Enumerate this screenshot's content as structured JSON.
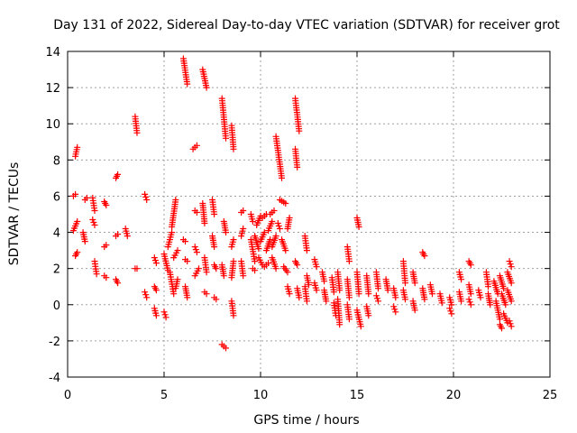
{
  "chart_data": {
    "type": "scatter",
    "title": "Day 131 of 2022, Sidereal Day-to-day VTEC variation (SDTVAR) for receiver grot",
    "xlabel": "GPS time / hours",
    "ylabel": "SDTVAR / TECUs",
    "xlim": [
      0,
      25
    ],
    "ylim": [
      -4,
      14
    ],
    "xticks": [
      0,
      5,
      10,
      15,
      20,
      25
    ],
    "yticks": [
      -4,
      -2,
      0,
      2,
      4,
      6,
      8,
      10,
      12,
      14
    ],
    "xtick_labels": [
      "0",
      "5",
      "10",
      "15",
      "20",
      "25"
    ],
    "ytick_labels": [
      "-4",
      "-2",
      "0",
      "2",
      "4",
      "6",
      "8",
      "10",
      "12",
      "14"
    ],
    "grid": true,
    "marker": "+",
    "color": "#ff0000",
    "series": [
      {
        "name": "SDTVAR",
        "segments": [
          [
            0.4,
            8.2,
            0.5,
            8.7
          ],
          [
            0.3,
            6.0,
            0.4,
            6.1
          ],
          [
            0.3,
            4.1,
            0.5,
            4.6
          ],
          [
            0.4,
            2.7,
            0.5,
            2.9
          ],
          [
            0.9,
            5.8,
            1.0,
            5.9
          ],
          [
            0.8,
            4.0,
            0.9,
            3.5
          ],
          [
            1.3,
            5.9,
            1.4,
            5.2
          ],
          [
            1.3,
            4.7,
            1.4,
            4.4
          ],
          [
            1.4,
            2.4,
            1.5,
            1.7
          ],
          [
            1.9,
            5.7,
            2.0,
            5.5
          ],
          [
            1.9,
            3.2,
            2.0,
            3.3
          ],
          [
            1.9,
            1.6,
            2.0,
            1.5
          ],
          [
            2.5,
            7.0,
            2.6,
            7.2
          ],
          [
            2.5,
            3.8,
            2.6,
            3.9
          ],
          [
            2.5,
            1.4,
            2.6,
            1.2
          ],
          [
            3.0,
            4.2,
            3.1,
            3.8
          ],
          [
            3.5,
            10.4,
            3.6,
            9.5
          ],
          [
            3.5,
            2.0,
            3.6,
            2.0
          ],
          [
            4.0,
            6.1,
            4.1,
            5.8
          ],
          [
            4.0,
            0.7,
            4.1,
            0.4
          ],
          [
            4.5,
            2.6,
            4.6,
            2.3
          ],
          [
            4.5,
            1.0,
            4.6,
            0.8
          ],
          [
            4.5,
            -0.2,
            4.6,
            -0.6
          ],
          [
            5.0,
            -0.4,
            5.1,
            -0.7
          ],
          [
            5.0,
            2.8,
            5.2,
            1.9
          ],
          [
            5.2,
            3.2,
            5.4,
            4.0
          ],
          [
            5.3,
            1.8,
            5.5,
            0.6
          ],
          [
            5.4,
            4.3,
            5.6,
            5.8
          ],
          [
            5.5,
            2.6,
            5.7,
            3.0
          ],
          [
            5.6,
            0.9,
            5.7,
            1.4
          ],
          [
            6.0,
            13.6,
            6.2,
            12.2
          ],
          [
            6.0,
            3.6,
            6.1,
            3.5
          ],
          [
            6.1,
            2.5,
            6.2,
            2.4
          ],
          [
            6.1,
            1.0,
            6.2,
            0.4
          ],
          [
            6.5,
            8.6,
            6.7,
            8.8
          ],
          [
            6.6,
            5.2,
            6.7,
            5.1
          ],
          [
            6.6,
            3.2,
            6.7,
            2.9
          ],
          [
            6.6,
            1.6,
            6.8,
            2.0
          ],
          [
            7.0,
            13.0,
            7.2,
            12.0
          ],
          [
            7.0,
            5.6,
            7.1,
            4.5
          ],
          [
            7.1,
            2.6,
            7.2,
            1.8
          ],
          [
            7.1,
            0.7,
            7.2,
            0.6
          ],
          [
            7.5,
            5.8,
            7.6,
            5.0
          ],
          [
            7.5,
            3.8,
            7.6,
            3.2
          ],
          [
            7.6,
            2.2,
            7.7,
            2.0
          ],
          [
            7.6,
            0.4,
            7.7,
            0.3
          ],
          [
            8.0,
            11.4,
            8.2,
            9.2
          ],
          [
            8.1,
            4.6,
            8.2,
            4.0
          ],
          [
            8.0,
            2.2,
            8.1,
            1.6
          ],
          [
            8.0,
            -2.2,
            8.2,
            -2.4
          ],
          [
            8.5,
            9.9,
            8.6,
            8.6
          ],
          [
            8.5,
            3.2,
            8.6,
            3.6
          ],
          [
            8.5,
            1.5,
            8.6,
            2.4
          ],
          [
            8.5,
            0.2,
            8.6,
            -0.6
          ],
          [
            9.0,
            5.1,
            9.1,
            5.2
          ],
          [
            9.0,
            3.8,
            9.1,
            4.2
          ],
          [
            9.0,
            2.4,
            9.1,
            1.6
          ],
          [
            9.5,
            5.0,
            9.6,
            4.6
          ],
          [
            9.5,
            3.6,
            9.7,
            2.4
          ],
          [
            9.6,
            2.0,
            9.7,
            1.9
          ],
          [
            9.7,
            3.8,
            9.9,
            3.1
          ],
          [
            9.8,
            4.4,
            10.0,
            4.9
          ],
          [
            9.9,
            2.6,
            10.1,
            2.2
          ],
          [
            10.0,
            3.5,
            10.2,
            4.0
          ],
          [
            10.1,
            4.8,
            10.3,
            5.0
          ],
          [
            10.2,
            2.1,
            10.4,
            2.3
          ],
          [
            10.3,
            3.0,
            10.5,
            3.6
          ],
          [
            10.4,
            4.1,
            10.6,
            4.6
          ],
          [
            10.5,
            5.0,
            10.7,
            5.2
          ],
          [
            10.6,
            2.6,
            10.8,
            2.0
          ],
          [
            10.6,
            3.2,
            10.8,
            3.8
          ],
          [
            10.8,
            9.3,
            11.1,
            7.0
          ],
          [
            10.9,
            4.5,
            11.0,
            4.2
          ],
          [
            11.0,
            5.8,
            11.3,
            5.6
          ],
          [
            11.1,
            3.6,
            11.3,
            3.0
          ],
          [
            11.2,
            2.1,
            11.4,
            1.8
          ],
          [
            11.4,
            4.2,
            11.5,
            4.8
          ],
          [
            11.4,
            1.0,
            11.5,
            0.6
          ],
          [
            11.8,
            11.4,
            12.0,
            9.6
          ],
          [
            11.8,
            8.6,
            11.9,
            7.6
          ],
          [
            11.8,
            2.4,
            11.9,
            2.2
          ],
          [
            11.9,
            0.9,
            12.0,
            0.4
          ],
          [
            12.3,
            3.8,
            12.4,
            3.0
          ],
          [
            12.3,
            1.0,
            12.4,
            0.2
          ],
          [
            12.4,
            1.6,
            12.5,
            1.1
          ],
          [
            12.8,
            2.5,
            12.9,
            2.1
          ],
          [
            12.8,
            1.2,
            12.9,
            0.8
          ],
          [
            13.2,
            1.8,
            13.3,
            1.3
          ],
          [
            13.3,
            0.8,
            13.4,
            0.2
          ],
          [
            13.7,
            1.5,
            13.8,
            0.7
          ],
          [
            13.8,
            0.1,
            13.9,
            -0.6
          ],
          [
            14.0,
            1.8,
            14.1,
            0.8
          ],
          [
            14.0,
            0.3,
            14.1,
            -1.1
          ],
          [
            14.5,
            3.2,
            14.6,
            2.4
          ],
          [
            14.5,
            1.4,
            14.6,
            0.4
          ],
          [
            14.5,
            0.0,
            14.6,
            -0.8
          ],
          [
            15.0,
            4.8,
            15.1,
            4.3
          ],
          [
            15.0,
            1.8,
            15.1,
            0.6
          ],
          [
            15.0,
            -0.3,
            15.2,
            -1.2
          ],
          [
            15.5,
            1.6,
            15.6,
            0.6
          ],
          [
            15.5,
            -0.1,
            15.6,
            -0.6
          ],
          [
            16.0,
            1.8,
            16.1,
            0.9
          ],
          [
            16.0,
            0.5,
            16.1,
            0.2
          ],
          [
            16.5,
            1.4,
            16.6,
            0.8
          ],
          [
            16.9,
            0.9,
            17.0,
            0.4
          ],
          [
            16.9,
            -0.1,
            17.0,
            -0.4
          ],
          [
            17.4,
            2.4,
            17.5,
            1.2
          ],
          [
            17.4,
            0.8,
            17.5,
            0.3
          ],
          [
            17.9,
            1.8,
            18.0,
            1.2
          ],
          [
            17.9,
            0.2,
            18.0,
            -0.3
          ],
          [
            18.4,
            2.9,
            18.5,
            2.7
          ],
          [
            18.4,
            0.9,
            18.5,
            0.3
          ],
          [
            18.8,
            1.1,
            18.9,
            0.6
          ],
          [
            19.3,
            0.6,
            19.4,
            0.1
          ],
          [
            19.8,
            0.4,
            19.9,
            0.0
          ],
          [
            19.8,
            -0.2,
            19.9,
            -0.5
          ],
          [
            20.3,
            1.8,
            20.4,
            1.4
          ],
          [
            20.3,
            0.7,
            20.4,
            0.2
          ],
          [
            20.8,
            2.4,
            20.9,
            2.2
          ],
          [
            20.8,
            1.1,
            20.9,
            0.6
          ],
          [
            20.8,
            0.3,
            20.9,
            0.0
          ],
          [
            21.3,
            0.8,
            21.4,
            0.4
          ],
          [
            21.7,
            1.8,
            21.8,
            1.0
          ],
          [
            21.8,
            0.6,
            21.9,
            0.0
          ],
          [
            22.1,
            1.3,
            22.3,
            0.6
          ],
          [
            22.2,
            0.2,
            22.4,
            -0.8
          ],
          [
            22.4,
            1.6,
            22.6,
            0.9
          ],
          [
            22.5,
            0.6,
            22.7,
            0.0
          ],
          [
            22.6,
            -0.5,
            22.8,
            -1.0
          ],
          [
            22.8,
            1.8,
            23.0,
            1.2
          ],
          [
            22.8,
            0.8,
            23.0,
            0.2
          ],
          [
            22.9,
            2.4,
            23.0,
            2.1
          ],
          [
            22.9,
            -0.9,
            23.0,
            -1.2
          ],
          [
            22.4,
            -1.1,
            22.5,
            -1.3
          ]
        ]
      }
    ]
  }
}
